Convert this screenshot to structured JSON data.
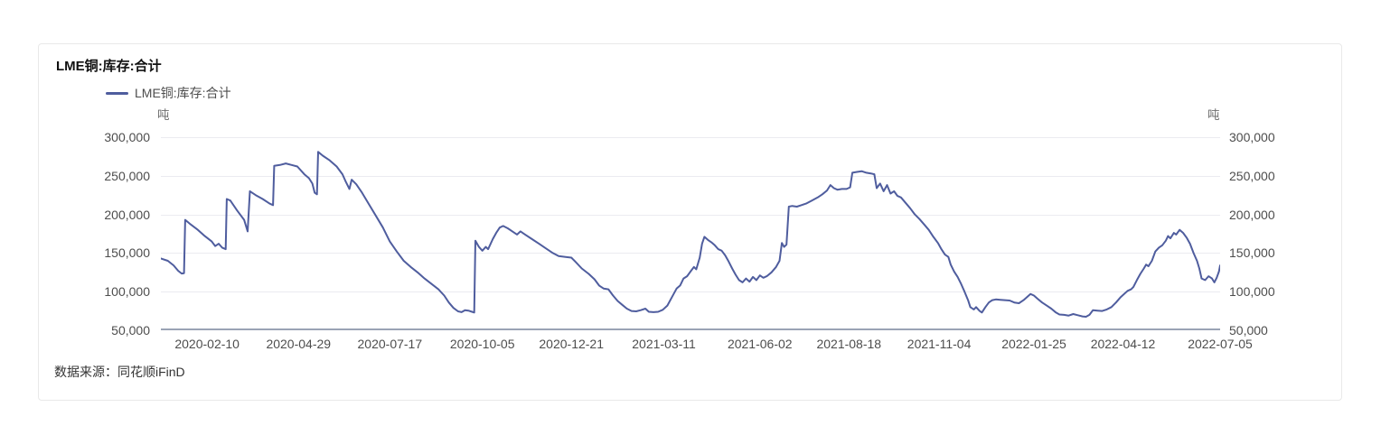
{
  "card": {
    "title": "LME铜:库存:合计",
    "legend_label": "LME铜:库存:合计",
    "unit_left": "吨",
    "unit_right": "吨",
    "source": "数据来源：同花顺iFinD"
  },
  "chart_data": {
    "type": "line",
    "title": "LME铜:库存:合计",
    "series_name": "LME铜:库存:合计",
    "unit": "吨",
    "line_color": "#4F5D9E",
    "grid_color": "#EBEBF0",
    "axis_color": "#9AA3B5",
    "grid": "horizontal-only",
    "legend_position": "top-left",
    "ylim": [
      50000,
      300000
    ],
    "y_ticks": [
      50000,
      100000,
      150000,
      200000,
      250000,
      300000
    ],
    "y_tick_labels": [
      "50,000",
      "100,000",
      "150,000",
      "200,000",
      "250,000",
      "300,000"
    ],
    "x_range": [
      "2020-01-01",
      "2022-07-05"
    ],
    "x_ticks": [
      "2020-02-10",
      "2020-04-29",
      "2020-07-17",
      "2020-10-05",
      "2020-12-21",
      "2021-03-11",
      "2021-06-02",
      "2021-08-18",
      "2021-11-04",
      "2022-01-25",
      "2022-04-12",
      "2022-07-05"
    ],
    "points": [
      [
        "2020-01-01",
        143000
      ],
      [
        "2020-01-07",
        140000
      ],
      [
        "2020-01-12",
        134000
      ],
      [
        "2020-01-16",
        127000
      ],
      [
        "2020-01-19",
        123500
      ],
      [
        "2020-01-21",
        124000
      ],
      [
        "2020-01-22",
        193000
      ],
      [
        "2020-01-26",
        188000
      ],
      [
        "2020-02-02",
        180000
      ],
      [
        "2020-02-08",
        172000
      ],
      [
        "2020-02-14",
        165000
      ],
      [
        "2020-02-17",
        159000
      ],
      [
        "2020-02-20",
        162000
      ],
      [
        "2020-02-23",
        157000
      ],
      [
        "2020-02-26",
        155000
      ],
      [
        "2020-02-27",
        220000
      ],
      [
        "2020-03-01",
        218000
      ],
      [
        "2020-03-07",
        205000
      ],
      [
        "2020-03-13",
        193000
      ],
      [
        "2020-03-16",
        178000
      ],
      [
        "2020-03-18",
        230000
      ],
      [
        "2020-03-23",
        225000
      ],
      [
        "2020-03-29",
        220000
      ],
      [
        "2020-04-04",
        214000
      ],
      [
        "2020-04-07",
        212000
      ],
      [
        "2020-04-08",
        263000
      ],
      [
        "2020-04-13",
        264000
      ],
      [
        "2020-04-18",
        266000
      ],
      [
        "2020-04-23",
        264000
      ],
      [
        "2020-04-28",
        262000
      ],
      [
        "2020-05-04",
        252000
      ],
      [
        "2020-05-08",
        247000
      ],
      [
        "2020-05-11",
        240000
      ],
      [
        "2020-05-13",
        228000
      ],
      [
        "2020-05-15",
        226000
      ],
      [
        "2020-05-16",
        281000
      ],
      [
        "2020-05-20",
        276000
      ],
      [
        "2020-05-26",
        270000
      ],
      [
        "2020-06-01",
        262000
      ],
      [
        "2020-06-06",
        252000
      ],
      [
        "2020-06-09",
        242000
      ],
      [
        "2020-06-12",
        233000
      ],
      [
        "2020-06-14",
        245000
      ],
      [
        "2020-06-18",
        239000
      ],
      [
        "2020-06-23",
        228000
      ],
      [
        "2020-06-29",
        213000
      ],
      [
        "2020-07-05",
        198000
      ],
      [
        "2020-07-11",
        183000
      ],
      [
        "2020-07-17",
        165000
      ],
      [
        "2020-07-23",
        152000
      ],
      [
        "2020-07-29",
        140000
      ],
      [
        "2020-08-04",
        132000
      ],
      [
        "2020-08-10",
        125000
      ],
      [
        "2020-08-16",
        117000
      ],
      [
        "2020-08-22",
        110000
      ],
      [
        "2020-08-28",
        103000
      ],
      [
        "2020-09-02",
        95000
      ],
      [
        "2020-09-06",
        86000
      ],
      [
        "2020-09-10",
        79000
      ],
      [
        "2020-09-14",
        74500
      ],
      [
        "2020-09-17",
        73500
      ],
      [
        "2020-09-20",
        76000
      ],
      [
        "2020-09-23",
        75500
      ],
      [
        "2020-09-26",
        74000
      ],
      [
        "2020-09-28",
        73000
      ],
      [
        "2020-09-29",
        166000
      ],
      [
        "2020-10-02",
        158000
      ],
      [
        "2020-10-05",
        153000
      ],
      [
        "2020-10-08",
        158000
      ],
      [
        "2020-10-10",
        155000
      ],
      [
        "2020-10-14",
        168000
      ],
      [
        "2020-10-17",
        176000
      ],
      [
        "2020-10-20",
        183000
      ],
      [
        "2020-10-23",
        185000
      ],
      [
        "2020-10-27",
        182000
      ],
      [
        "2020-11-01",
        177000
      ],
      [
        "2020-11-04",
        174000
      ],
      [
        "2020-11-07",
        178000
      ],
      [
        "2020-11-11",
        174000
      ],
      [
        "2020-11-17",
        168000
      ],
      [
        "2020-11-23",
        162000
      ],
      [
        "2020-11-29",
        156000
      ],
      [
        "2020-12-05",
        150000
      ],
      [
        "2020-12-10",
        146000
      ],
      [
        "2020-12-16",
        145000
      ],
      [
        "2020-12-21",
        144000
      ],
      [
        "2020-12-25",
        138000
      ],
      [
        "2020-12-30",
        130000
      ],
      [
        "2021-01-05",
        123000
      ],
      [
        "2021-01-10",
        116000
      ],
      [
        "2021-01-14",
        108000
      ],
      [
        "2021-01-18",
        104000
      ],
      [
        "2021-01-22",
        103000
      ],
      [
        "2021-01-26",
        95000
      ],
      [
        "2021-01-30",
        88000
      ],
      [
        "2021-02-03",
        83000
      ],
      [
        "2021-02-07",
        78000
      ],
      [
        "2021-02-11",
        75000
      ],
      [
        "2021-02-15",
        74500
      ],
      [
        "2021-02-19",
        76000
      ],
      [
        "2021-02-23",
        78000
      ],
      [
        "2021-02-26",
        74000
      ],
      [
        "2021-03-02",
        73500
      ],
      [
        "2021-03-06",
        74000
      ],
      [
        "2021-03-10",
        76500
      ],
      [
        "2021-03-14",
        82000
      ],
      [
        "2021-03-18",
        93000
      ],
      [
        "2021-03-22",
        104000
      ],
      [
        "2021-03-25",
        108000
      ],
      [
        "2021-03-28",
        117000
      ],
      [
        "2021-03-31",
        120000
      ],
      [
        "2021-04-03",
        126000
      ],
      [
        "2021-04-06",
        132000
      ],
      [
        "2021-04-08",
        129000
      ],
      [
        "2021-04-11",
        144000
      ],
      [
        "2021-04-13",
        162000
      ],
      [
        "2021-04-15",
        171000
      ],
      [
        "2021-04-18",
        167000
      ],
      [
        "2021-04-21",
        164000
      ],
      [
        "2021-04-24",
        160000
      ],
      [
        "2021-04-27",
        155000
      ],
      [
        "2021-04-30",
        153000
      ],
      [
        "2021-05-03",
        147000
      ],
      [
        "2021-05-06",
        139000
      ],
      [
        "2021-05-09",
        130000
      ],
      [
        "2021-05-12",
        122000
      ],
      [
        "2021-05-15",
        115000
      ],
      [
        "2021-05-18",
        112000
      ],
      [
        "2021-05-21",
        117000
      ],
      [
        "2021-05-24",
        113000
      ],
      [
        "2021-05-27",
        119000
      ],
      [
        "2021-05-30",
        115000
      ],
      [
        "2021-06-02",
        121000
      ],
      [
        "2021-06-05",
        118000
      ],
      [
        "2021-06-08",
        120000
      ],
      [
        "2021-06-12",
        125000
      ],
      [
        "2021-06-16",
        132000
      ],
      [
        "2021-06-19",
        140000
      ],
      [
        "2021-06-21",
        163000
      ],
      [
        "2021-06-23",
        158000
      ],
      [
        "2021-06-25",
        161000
      ],
      [
        "2021-06-27",
        210000
      ],
      [
        "2021-06-30",
        211000
      ],
      [
        "2021-07-04",
        210000
      ],
      [
        "2021-07-08",
        212000
      ],
      [
        "2021-07-12",
        214000
      ],
      [
        "2021-07-17",
        218000
      ],
      [
        "2021-07-22",
        222000
      ],
      [
        "2021-07-26",
        226000
      ],
      [
        "2021-07-30",
        231000
      ],
      [
        "2021-08-02",
        238000
      ],
      [
        "2021-08-05",
        234000
      ],
      [
        "2021-08-08",
        232000
      ],
      [
        "2021-08-12",
        233000
      ],
      [
        "2021-08-16",
        233000
      ],
      [
        "2021-08-19",
        235000
      ],
      [
        "2021-08-21",
        254000
      ],
      [
        "2021-08-25",
        255000
      ],
      [
        "2021-08-29",
        256000
      ],
      [
        "2021-09-02",
        254000
      ],
      [
        "2021-09-06",
        253000
      ],
      [
        "2021-09-09",
        252000
      ],
      [
        "2021-09-11",
        234000
      ],
      [
        "2021-09-14",
        240000
      ],
      [
        "2021-09-17",
        230000
      ],
      [
        "2021-09-20",
        238000
      ],
      [
        "2021-09-23",
        227000
      ],
      [
        "2021-09-26",
        230000
      ],
      [
        "2021-09-29",
        224000
      ],
      [
        "2021-10-02",
        222000
      ],
      [
        "2021-10-06",
        215000
      ],
      [
        "2021-10-10",
        208000
      ],
      [
        "2021-10-14",
        200000
      ],
      [
        "2021-10-18",
        194000
      ],
      [
        "2021-10-22",
        187000
      ],
      [
        "2021-10-26",
        180000
      ],
      [
        "2021-10-30",
        171000
      ],
      [
        "2021-11-03",
        163000
      ],
      [
        "2021-11-06",
        155000
      ],
      [
        "2021-11-09",
        148000
      ],
      [
        "2021-11-12",
        145000
      ],
      [
        "2021-11-14",
        135000
      ],
      [
        "2021-11-17",
        126000
      ],
      [
        "2021-11-20",
        119000
      ],
      [
        "2021-11-23",
        110000
      ],
      [
        "2021-11-26",
        100000
      ],
      [
        "2021-11-29",
        89000
      ],
      [
        "2021-12-01",
        80000
      ],
      [
        "2021-12-04",
        77000
      ],
      [
        "2021-12-06",
        80000
      ],
      [
        "2021-12-09",
        75000
      ],
      [
        "2021-12-11",
        73000
      ],
      [
        "2021-12-14",
        80000
      ],
      [
        "2021-12-17",
        86000
      ],
      [
        "2021-12-20",
        89000
      ],
      [
        "2021-12-23",
        90000
      ],
      [
        "2021-12-27",
        89500
      ],
      [
        "2021-12-31",
        89000
      ],
      [
        "2022-01-04",
        88500
      ],
      [
        "2022-01-08",
        86000
      ],
      [
        "2022-01-12",
        85000
      ],
      [
        "2022-01-16",
        89000
      ],
      [
        "2022-01-19",
        93000
      ],
      [
        "2022-01-22",
        97000
      ],
      [
        "2022-01-25",
        95000
      ],
      [
        "2022-01-28",
        91000
      ],
      [
        "2022-02-01",
        86000
      ],
      [
        "2022-02-05",
        82000
      ],
      [
        "2022-02-09",
        78000
      ],
      [
        "2022-02-13",
        73000
      ],
      [
        "2022-02-16",
        70500
      ],
      [
        "2022-02-20",
        70000
      ],
      [
        "2022-02-24",
        69000
      ],
      [
        "2022-02-28",
        71000
      ],
      [
        "2022-03-04",
        69500
      ],
      [
        "2022-03-08",
        68000
      ],
      [
        "2022-03-11",
        67500
      ],
      [
        "2022-03-14",
        70000
      ],
      [
        "2022-03-17",
        76000
      ],
      [
        "2022-03-21",
        75500
      ],
      [
        "2022-03-25",
        75000
      ],
      [
        "2022-03-29",
        77000
      ],
      [
        "2022-04-02",
        80000
      ],
      [
        "2022-04-06",
        86000
      ],
      [
        "2022-04-10",
        93000
      ],
      [
        "2022-04-13",
        97000
      ],
      [
        "2022-04-16",
        101000
      ],
      [
        "2022-04-19",
        103000
      ],
      [
        "2022-04-21",
        106000
      ],
      [
        "2022-04-24",
        115000
      ],
      [
        "2022-04-27",
        123000
      ],
      [
        "2022-04-30",
        130000
      ],
      [
        "2022-05-02",
        135000
      ],
      [
        "2022-05-04",
        133000
      ],
      [
        "2022-05-07",
        140000
      ],
      [
        "2022-05-10",
        152000
      ],
      [
        "2022-05-13",
        157000
      ],
      [
        "2022-05-16",
        160000
      ],
      [
        "2022-05-19",
        166000
      ],
      [
        "2022-05-21",
        172000
      ],
      [
        "2022-05-23",
        169000
      ],
      [
        "2022-05-26",
        176000
      ],
      [
        "2022-05-28",
        174000
      ],
      [
        "2022-05-31",
        180000
      ],
      [
        "2022-06-03",
        176000
      ],
      [
        "2022-06-06",
        170000
      ],
      [
        "2022-06-09",
        162000
      ],
      [
        "2022-06-12",
        150000
      ],
      [
        "2022-06-15",
        140000
      ],
      [
        "2022-06-17",
        130000
      ],
      [
        "2022-06-19",
        117000
      ],
      [
        "2022-06-22",
        115000
      ],
      [
        "2022-06-25",
        120000
      ],
      [
        "2022-06-28",
        117000
      ],
      [
        "2022-06-30",
        112000
      ],
      [
        "2022-07-02",
        118000
      ],
      [
        "2022-07-04",
        126000
      ],
      [
        "2022-07-05",
        134000
      ]
    ]
  }
}
